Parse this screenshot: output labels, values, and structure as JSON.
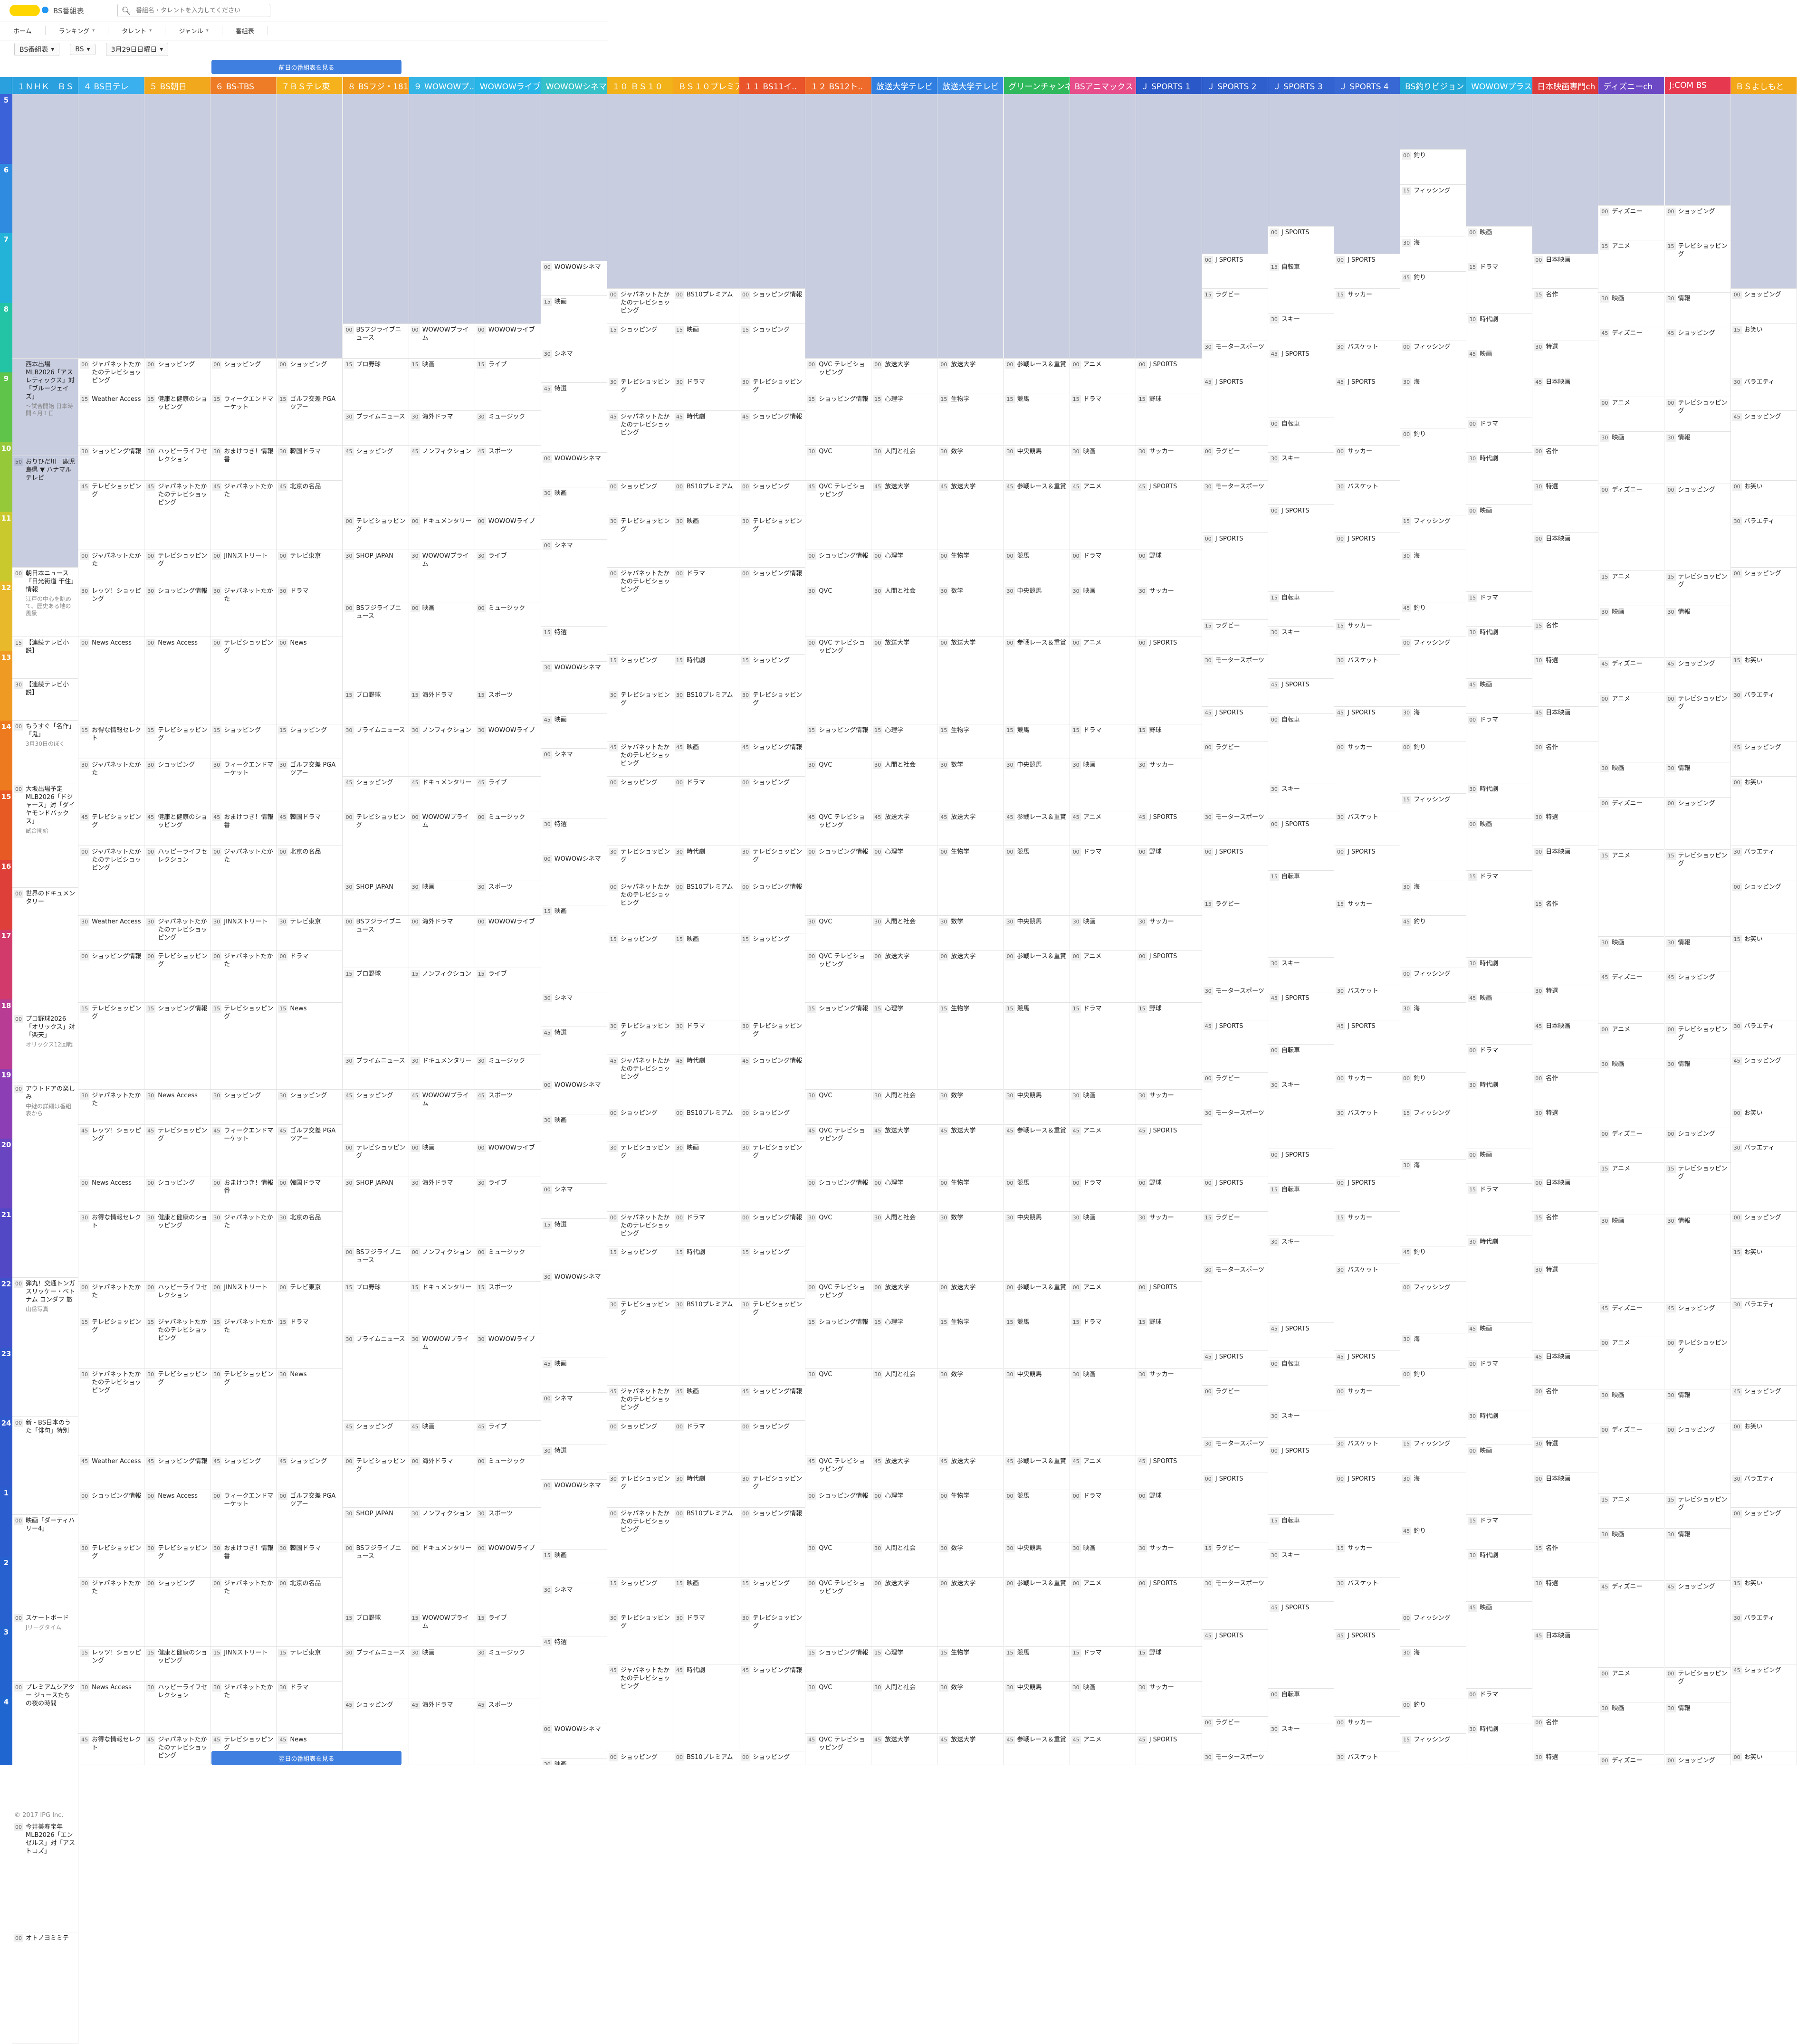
{
  "header": {
    "site_name": "BS番組表",
    "search_placeholder": "番組名・タレントを入力してください"
  },
  "nav": [
    {
      "label": "ホーム"
    },
    {
      "label": "ランキング"
    },
    {
      "label": "タレント"
    },
    {
      "label": "ジャンル"
    },
    {
      "label": "番組表"
    }
  ],
  "controls": {
    "table": "BS番組表",
    "band": "BS",
    "date": "3月29日日曜日"
  },
  "buttons": {
    "prev_day": "前日の番組表を見る",
    "next_day": "翌日の番組表を見る"
  },
  "footer": "© 2017 IPG Inc.",
  "hours": [
    "5",
    "6",
    "7",
    "8",
    "9",
    "10",
    "11",
    "12",
    "13",
    "14",
    "15",
    "16",
    "17",
    "18",
    "19",
    "20",
    "21",
    "22",
    "23",
    "24",
    "1",
    "2",
    "3",
    "4"
  ],
  "hour_colors": [
    "#3b62d8",
    "#2f8be0",
    "#24b3d8",
    "#22c4a5",
    "#5ec44a",
    "#96c93a",
    "#c9c92d",
    "#e8b92a",
    "#ef9a22",
    "#ee7a20",
    "#e85a23",
    "#df3f39",
    "#d13a6a",
    "#b83c94",
    "#8c3fb4",
    "#6a45c2",
    "#5248c6",
    "#3f52cc",
    "#3457cc",
    "#2f5acd",
    "#2b5dce",
    "#2760cf",
    "#2363d0",
    "#1f66d1"
  ],
  "channels": [
    {
      "name": "１ＮＨＫ　ＢＳ",
      "color": "#2ba0df"
    },
    {
      "name": "４ BS日テレ",
      "color": "#3ab0ef"
    },
    {
      "name": "５ BS朝日",
      "color": "#f2a81d"
    },
    {
      "name": "６ BS-TBS",
      "color": "#ee7c26"
    },
    {
      "name": "７ＢＳテレ東",
      "color": "#f5b21c"
    },
    {
      "name": "８ BSフジ・181",
      "color": "#f09a1e"
    },
    {
      "name": "９ WOWOWプ..",
      "color": "#34b5e5"
    },
    {
      "name": "WOWOWライブ",
      "color": "#28b6e9"
    },
    {
      "name": "WOWOWシネマ",
      "color": "#36c0c8"
    },
    {
      "name": "１０ ＢＳ１０",
      "color": "#f2b21a"
    },
    {
      "name": "ＢＳ１０プレミアム",
      "color": "#f5a81c"
    },
    {
      "name": "１１ BS11イ..",
      "color": "#e9542a"
    },
    {
      "name": "１２ BS12ト..",
      "color": "#ee6a2a"
    },
    {
      "name": "放送大学テレビ",
      "color": "#2f7ee0"
    },
    {
      "name": "放送大学テレビ",
      "color": "#3a8ae5"
    },
    {
      "name": "グリーンチャンネル",
      "color": "#2fb95c"
    },
    {
      "name": "BSアニマックス",
      "color": "#e64d8a"
    },
    {
      "name": "Ｊ SPORTS 1",
      "color": "#2a58c8"
    },
    {
      "name": "Ｊ SPORTS 2",
      "color": "#2f5fcd"
    },
    {
      "name": "Ｊ SPORTS 3",
      "color": "#3363d0"
    },
    {
      "name": "Ｊ SPORTS 4",
      "color": "#3868d3"
    },
    {
      "name": "BS釣りビジョン",
      "color": "#23a7d6"
    },
    {
      "name": "WOWOWプラス",
      "color": "#2db8ea"
    },
    {
      "name": "日本映画専門ch",
      "color": "#df3a3a"
    },
    {
      "name": "ディズニーch",
      "color": "#6c48c4"
    },
    {
      "name": "J:COM BS",
      "color": "#e6384f"
    },
    {
      "name": "ＢＳよしもと",
      "color": "#f3a81a"
    }
  ],
  "programs": [
    [
      {
        "start": 0,
        "end": 3.8,
        "min": "",
        "title": "",
        "shade": true
      },
      {
        "start": 3.8,
        "end": 5.2,
        "min": "",
        "title": "西本出場 MLB2026「アスレティックス」対「ブルージェイズ」",
        "sub": "～試合開始 日本時間４月１日",
        "shade": true
      },
      {
        "start": 5.2,
        "end": 6.8,
        "min": "50",
        "title": "おりひだ川　鹿児島県 ▼ ハナマルテレビ",
        "sub": "",
        "shade": true
      },
      {
        "start": 6.8,
        "end": 7.8,
        "min": "00",
        "title": "朝日本ニュース「日光街道 千住」情報",
        "sub": "江戸の中心を眺めて、歴史ある地の風景"
      },
      {
        "start": 7.8,
        "end": 8.4,
        "min": "15",
        "title": "【連続テレビ小説】"
      },
      {
        "start": 8.4,
        "end": 9.0,
        "min": "30",
        "title": "【連続テレビ小説】"
      },
      {
        "start": 9.0,
        "end": 9.9,
        "min": "00",
        "title": "もうすぐ「名作」「鬼」",
        "sub": "3月30日のぼく"
      },
      {
        "start": 9.9,
        "end": 11.4,
        "min": "00",
        "title": "大坂出場予定 MLB2026「ドジャース」対「ダイヤモンドバックス」",
        "sub": "試合開始"
      },
      {
        "start": 11.4,
        "end": 13.2,
        "min": "00",
        "title": "世界のドキュメンタリー",
        "sub": ""
      },
      {
        "start": 13.2,
        "end": 14.2,
        "min": "00",
        "title": "プロ野球2026「オリックス」対「楽天」",
        "sub": "オリックス12回戦"
      },
      {
        "start": 14.2,
        "end": 17.0,
        "min": "00",
        "title": "アウトドアの楽しみ",
        "sub": "中継の詳細は番組表から"
      },
      {
        "start": 17.0,
        "end": 19.0,
        "min": "00",
        "title": "弾丸！交通トンガスリッケー・ベトナム コンダフ 旅",
        "sub": "山岳写真"
      },
      {
        "start": 19.0,
        "end": 20.4,
        "min": "00",
        "title": "新・BS日本のうた「俳句」特別",
        "sub": ""
      },
      {
        "start": 20.4,
        "end": 21.8,
        "min": "00",
        "title": "映画「ダーティハリー4」",
        "sub": ""
      },
      {
        "start": 21.8,
        "end": 22.8,
        "min": "00",
        "title": "スケートボード",
        "sub": "Jリーグタイム"
      },
      {
        "start": 22.8,
        "end": 24.8,
        "min": "00",
        "title": "プレミアムシアター ジュースたちの夜の時間",
        "sub": ""
      },
      {
        "start": 24.8,
        "end": 26.4,
        "min": "00",
        "title": "今井美寿宝年 MLB2026「エンゼルス」対「アストロズ」",
        "sub": ""
      },
      {
        "start": 26.4,
        "end": 28,
        "min": "00",
        "title": "オトノヨミミテ",
        "sub": ""
      }
    ]
  ],
  "columns_text": [
    [
      "ジャパネットたかたのテレビショッピング",
      "Weather Access",
      "ショッピング情報",
      "テレビショッピング",
      "ジャパネットたかた",
      "レッツ！ショッピング",
      "News Access",
      "お得な情報セレクト",
      "ジャパネットたかた",
      "テレビショッピング"
    ],
    [
      "ショッピング",
      "健康と健康のショッピング",
      "ハッピーライフセレクション",
      "ジャパネットたかたのテレビショッピング",
      "テレビショッピング",
      "ショッピング情報",
      "News Access",
      "テレビショッピング"
    ],
    [
      "ショッピング",
      "ウィークエンドマーケット",
      "おまけつき！情報番",
      "ジャパネットたかた",
      "JINNストリート",
      "ジャパネットたかた",
      "テレビショッピング"
    ],
    [
      "ショッピング",
      "ゴルフ交差 PGAツアー",
      "韓国ドラマ",
      "北京の名品",
      "テレビ東京",
      "ドラマ",
      "News"
    ],
    [
      "BSフジライブニュース",
      "プロ野球",
      "プライムニュース",
      "ショッピング",
      "テレビショッピング",
      "SHOP JAPAN"
    ],
    [
      "WOWOWプライム",
      "映画",
      "海外ドラマ",
      "ノンフィクション",
      "ドキュメンタリー"
    ],
    [
      "WOWOWライブ",
      "ライブ",
      "ミュージック",
      "スポーツ"
    ],
    [
      "WOWOWシネマ",
      "映画",
      "シネマ",
      "特選"
    ],
    [
      "ジャパネットたかたのテレビショッピング",
      "ショッピング",
      "テレビショッピング"
    ],
    [
      "BS10プレミアム",
      "映画",
      "ドラマ",
      "時代劇"
    ],
    [
      "ショッピング情報",
      "ショッピング",
      "テレビショッピング"
    ],
    [
      "QVC テレビショッピング",
      "ショッピング情報",
      "QVC"
    ],
    [
      "放送大学",
      "心理学",
      "人間と社会"
    ],
    [
      "放送大学",
      "生物学",
      "数学"
    ],
    [
      "参戦レース＆重賞",
      "競馬",
      "中央競馬"
    ],
    [
      "アニメ",
      "ドラマ",
      "映画"
    ],
    [
      "J SPORTS",
      "野球",
      "サッカー"
    ],
    [
      "J SPORTS",
      "ラグビー",
      "モータースポーツ"
    ],
    [
      "J SPORTS",
      "自転車",
      "スキー"
    ],
    [
      "J SPORTS",
      "サッカー",
      "バスケット"
    ],
    [
      "釣り",
      "フィッシング",
      "海"
    ],
    [
      "映画",
      "ドラマ",
      "時代劇"
    ],
    [
      "日本映画",
      "名作",
      "特選"
    ],
    [
      "ディズニー",
      "アニメ",
      "映画"
    ],
    [
      "ショッピング",
      "テレビショッピング",
      "情報"
    ],
    [
      "ショッピング",
      "お笑い",
      "バラエティ"
    ]
  ]
}
